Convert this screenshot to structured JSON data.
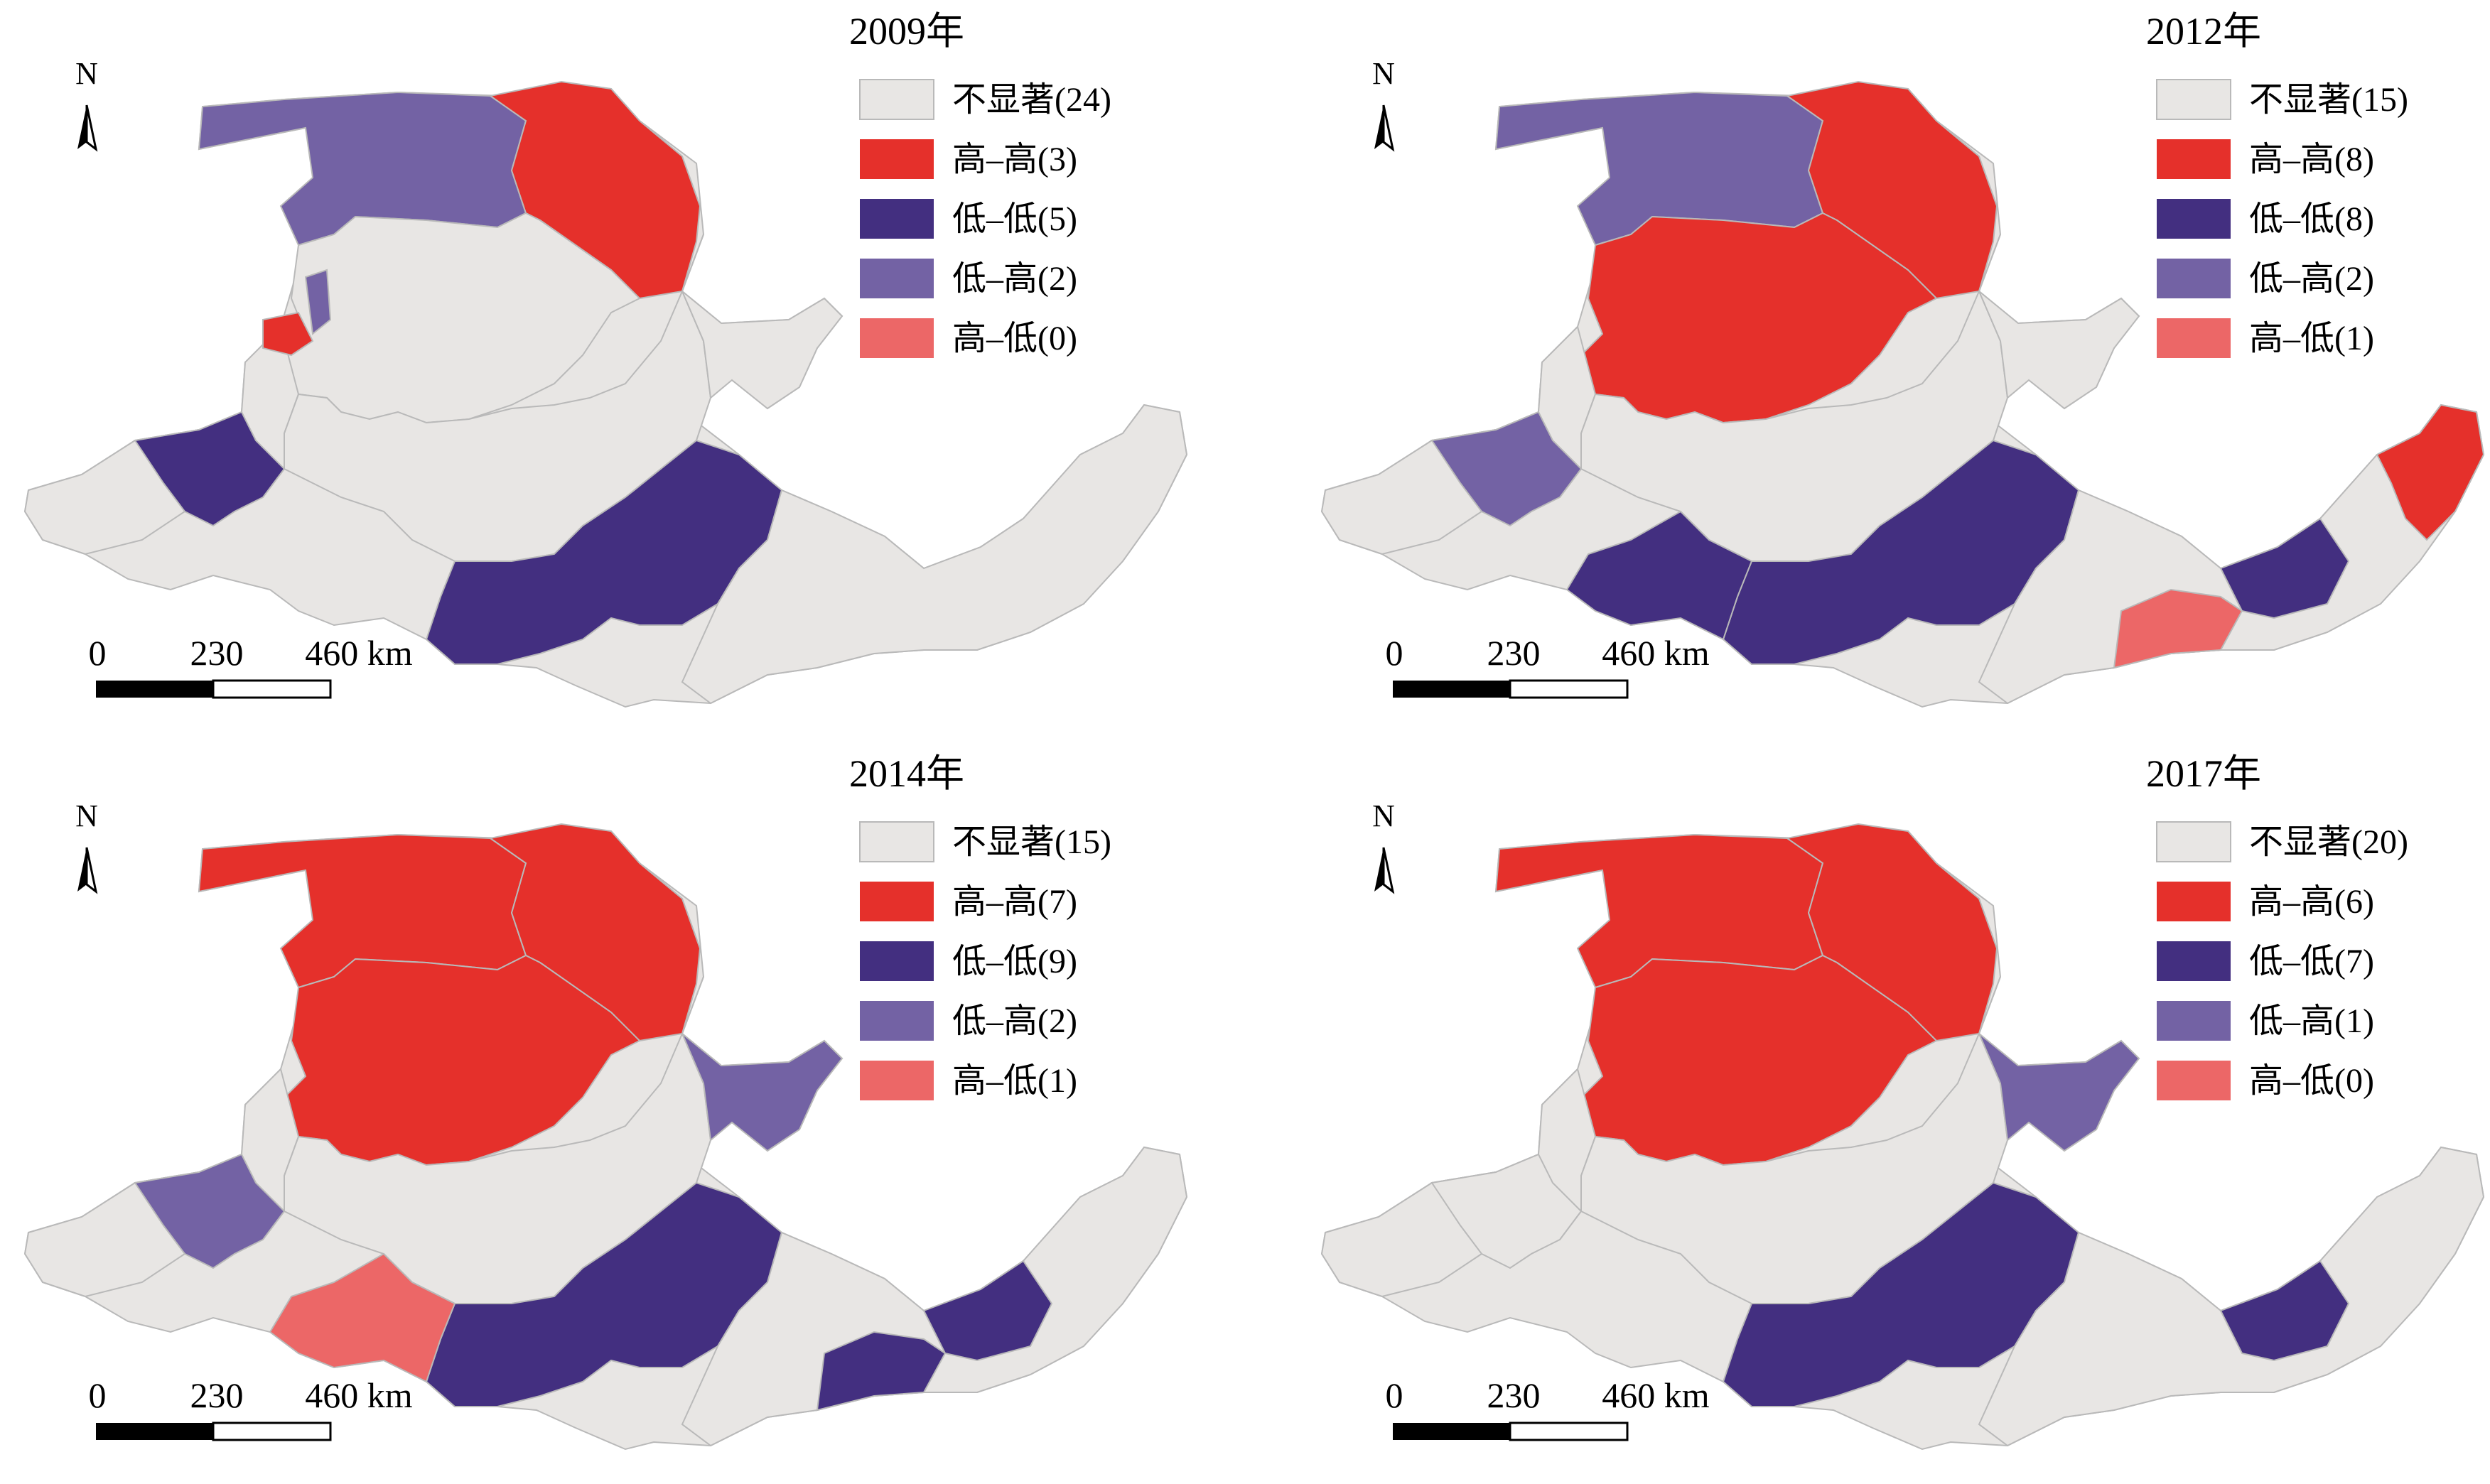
{
  "colors": {
    "not_significant": "#e8e6e4",
    "high_high": "#e5302b",
    "low_low": "#432f80",
    "low_high": "#7362a4",
    "high_low": "#ec6767",
    "border": "#b9b9b9"
  },
  "north_label": "N",
  "scalebar": {
    "labels": [
      "0",
      "230",
      "460 km"
    ]
  },
  "maps": [
    {
      "title": "2009年",
      "legend": [
        {
          "key": "not_significant",
          "label": "不显著(24)"
        },
        {
          "key": "high_high",
          "label": "高–高(3)"
        },
        {
          "key": "low_low",
          "label": "低–低(5)"
        },
        {
          "key": "low_high",
          "label": "低–高(2)"
        },
        {
          "key": "high_low",
          "label": "高–低(0)"
        }
      ]
    },
    {
      "title": "2012年",
      "legend": [
        {
          "key": "not_significant",
          "label": "不显著(15)"
        },
        {
          "key": "high_high",
          "label": "高–高(8)"
        },
        {
          "key": "low_low",
          "label": "低–低(8)"
        },
        {
          "key": "low_high",
          "label": "低–高(2)"
        },
        {
          "key": "high_low",
          "label": "高–低(1)"
        }
      ]
    },
    {
      "title": "2014年",
      "legend": [
        {
          "key": "not_significant",
          "label": "不显著(15)"
        },
        {
          "key": "high_high",
          "label": "高–高(7)"
        },
        {
          "key": "low_low",
          "label": "低–低(9)"
        },
        {
          "key": "low_high",
          "label": "低–高(2)"
        },
        {
          "key": "high_low",
          "label": "高–低(1)"
        }
      ]
    },
    {
      "title": "2017年",
      "legend": [
        {
          "key": "not_significant",
          "label": "不显著(20)"
        },
        {
          "key": "high_high",
          "label": "高–高(6)"
        },
        {
          "key": "low_low",
          "label": "低–低(7)"
        },
        {
          "key": "low_high",
          "label": "低–高(1)"
        },
        {
          "key": "high_low",
          "label": "高–低(0)"
        }
      ]
    }
  ]
}
